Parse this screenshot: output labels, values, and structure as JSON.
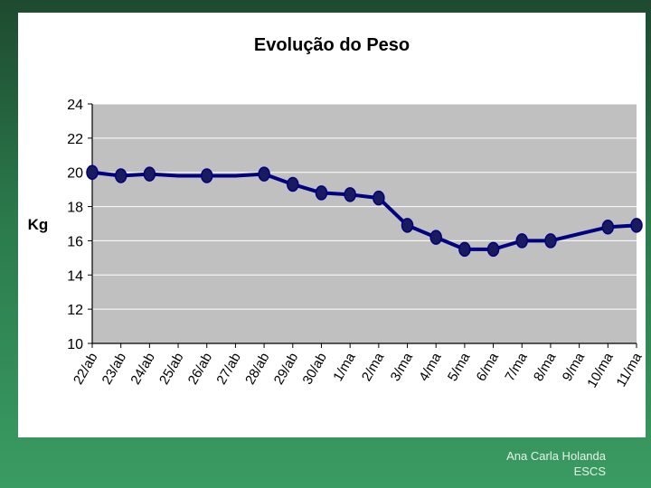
{
  "chart_data": {
    "type": "line",
    "title": "Evolução do Peso",
    "ylabel": "Kg",
    "xlabel": "",
    "ylim": [
      10,
      24
    ],
    "yticks": [
      10,
      12,
      14,
      16,
      18,
      20,
      22,
      24
    ],
    "grid": true,
    "legend": "none",
    "categories": [
      "22/abr",
      "23/abr",
      "24/abr",
      "25/abr",
      "26/abr",
      "27/abr",
      "28/abr",
      "29/abr",
      "30/abr",
      "1/mai",
      "2/mai",
      "3/mai",
      "4/mai",
      "5/mai",
      "6/mai",
      "7/mai",
      "8/mai",
      "9/mai",
      "10/mai",
      "11/mai"
    ],
    "category_labels": [
      "22/ab",
      "23/ab",
      "24/ab",
      "25/ab",
      "26/ab",
      "27/ab",
      "28/ab",
      "29/ab",
      "30/ab",
      "1/ma",
      "2/ma",
      "3/ma",
      "4/ma",
      "5/ma",
      "6/ma",
      "7/ma",
      "8/ma",
      "9/ma",
      "10/ma",
      "11/ma"
    ],
    "series": [
      {
        "values": [
          20.0,
          19.8,
          19.9,
          19.8,
          19.8,
          19.8,
          19.9,
          19.3,
          18.8,
          18.7,
          18.5,
          16.9,
          16.2,
          15.5,
          15.5,
          16.0,
          16.0,
          16.4,
          16.8,
          16.9
        ],
        "markers": [
          true,
          true,
          true,
          false,
          true,
          false,
          true,
          true,
          true,
          true,
          true,
          true,
          true,
          true,
          true,
          true,
          true,
          false,
          true,
          true
        ]
      }
    ],
    "colors": {
      "line": "#000080",
      "marker_fill": "#1a1a5e",
      "plot_bg": "#c0c0c0",
      "grid": "#ffffff"
    }
  },
  "footer": {
    "author": "Ana Carla Holanda",
    "institution": "ESCS"
  }
}
